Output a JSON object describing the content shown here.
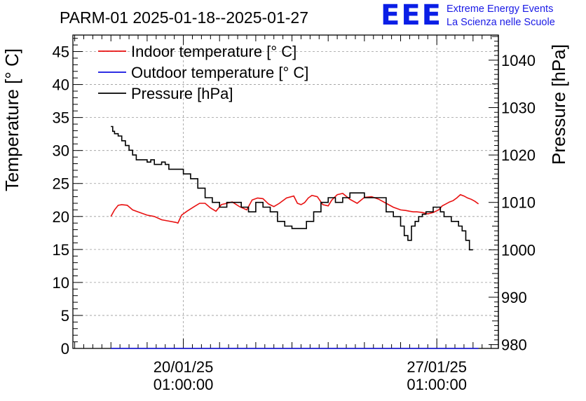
{
  "chart_data": {
    "type": "line",
    "title": "PARM-01 2025-01-18--2025-01-27",
    "logo": {
      "mark": "EEE",
      "line1": "Extreme Energy Events",
      "line2": "La Scienza nelle Scuole"
    },
    "x_ticks": [
      {
        "date": "20/01/25",
        "time": "01:00:00",
        "day": 2
      },
      {
        "date": "27/01/25",
        "time": "01:00:00",
        "day": 9
      }
    ],
    "xlim_days": [
      -1.05,
      10.7
    ],
    "left_axis": {
      "label": "Temperature [° C]",
      "ylim": [
        0,
        47.5
      ],
      "ticks": [
        0,
        5,
        10,
        15,
        20,
        25,
        30,
        35,
        40,
        45
      ]
    },
    "right_axis": {
      "label": "Pressure [hPa]",
      "ylim": [
        979.2,
        1045.3
      ],
      "ticks": [
        980,
        990,
        1000,
        1010,
        1020,
        1030,
        1040
      ]
    },
    "legend": [
      {
        "label": "Indoor temperature [° C]",
        "color": "#e81010"
      },
      {
        "label": "Outdoor temperature [° C]",
        "color": "#1010e0"
      },
      {
        "label": "Pressure [hPa]",
        "color": "#000000"
      }
    ],
    "series": [
      {
        "name": "Indoor temperature [° C]",
        "axis": "left",
        "color": "#e81010",
        "step": false,
        "x": [
          0.0,
          0.1,
          0.2,
          0.3,
          0.45,
          0.6,
          0.75,
          0.85,
          1.0,
          1.2,
          1.4,
          1.6,
          1.8,
          1.85,
          1.95,
          2.1,
          2.3,
          2.45,
          2.6,
          2.75,
          2.9,
          3.05,
          3.2,
          3.35,
          3.55,
          3.75,
          3.9,
          4.05,
          4.2,
          4.35,
          4.5,
          4.65,
          4.85,
          5.05,
          5.15,
          5.25,
          5.35,
          5.45,
          5.55,
          5.7,
          5.85,
          6.0,
          6.1,
          6.25,
          6.4,
          6.6,
          6.8,
          7.0,
          7.2,
          7.4,
          7.6,
          7.8,
          8.0,
          8.15,
          8.25,
          8.35,
          8.45,
          8.6,
          8.75,
          8.9,
          9.05,
          9.15,
          9.25,
          9.35,
          9.45,
          9.55,
          9.65,
          9.75,
          9.85,
          9.95,
          10.05,
          10.15
        ],
        "y": [
          20.0,
          21.0,
          21.7,
          21.8,
          21.7,
          21.0,
          20.7,
          20.5,
          20.2,
          20.0,
          19.5,
          19.3,
          19.1,
          19.0,
          20.2,
          20.8,
          21.5,
          22.0,
          22.0,
          21.3,
          20.8,
          21.8,
          22.0,
          22.2,
          21.5,
          21.0,
          22.5,
          22.8,
          22.7,
          21.9,
          21.5,
          22.0,
          22.8,
          23.1,
          22.0,
          21.8,
          22.1,
          22.8,
          23.2,
          23.0,
          21.8,
          21.6,
          22.5,
          23.3,
          23.5,
          22.6,
          22.0,
          22.9,
          23.0,
          22.6,
          22.0,
          21.4,
          21.0,
          20.9,
          20.8,
          20.7,
          20.7,
          20.6,
          20.4,
          20.6,
          21.0,
          21.6,
          21.9,
          22.2,
          22.4,
          22.8,
          23.3,
          23.1,
          22.8,
          22.6,
          22.3,
          21.9
        ]
      },
      {
        "name": "Outdoor temperature [° C]",
        "axis": "left",
        "color": "#1010e0",
        "step": false,
        "x": [
          0.0,
          10.15
        ],
        "y": [
          0.0,
          0.0
        ]
      },
      {
        "name": "Pressure [hPa]",
        "axis": "right",
        "color": "#000000",
        "step": true,
        "x": [
          0.0,
          0.05,
          0.1,
          0.2,
          0.3,
          0.4,
          0.5,
          0.6,
          0.7,
          0.8,
          1.0,
          1.1,
          1.2,
          1.3,
          1.4,
          1.5,
          1.6,
          1.8,
          2.0,
          2.2,
          2.4,
          2.6,
          2.8,
          3.0,
          3.2,
          3.4,
          3.6,
          3.8,
          4.0,
          4.2,
          4.4,
          4.6,
          4.8,
          5.0,
          5.2,
          5.4,
          5.6,
          5.8,
          6.0,
          6.2,
          6.4,
          6.6,
          6.8,
          7.0,
          7.2,
          7.4,
          7.6,
          7.8,
          8.0,
          8.1,
          8.2,
          8.3,
          8.4,
          8.5,
          8.6,
          8.7,
          8.8,
          8.9,
          9.0,
          9.1,
          9.2,
          9.4,
          9.6,
          9.7,
          9.8,
          9.9,
          10.0
        ],
        "y": [
          1026,
          1025,
          1024.5,
          1024,
          1023,
          1022,
          1021,
          1020,
          1019,
          1019,
          1018.5,
          1019,
          1018,
          1018,
          1018.5,
          1018,
          1017,
          1017,
          1016,
          1015,
          1013,
          1011,
          1010,
          1009,
          1010,
          1010,
          1009,
          1008,
          1010,
          1009,
          1008,
          1006,
          1005,
          1004.5,
          1004.5,
          1006,
          1008,
          1010,
          1011,
          1010,
          1011,
          1012,
          1012,
          1011,
          1011,
          1011,
          1008,
          1007,
          1005,
          1003,
          1002,
          1005,
          1006,
          1007,
          1007.5,
          1008,
          1008,
          1009,
          1009,
          1008,
          1007,
          1006,
          1005,
          1004,
          1002,
          1000,
          1000
        ]
      }
    ]
  }
}
